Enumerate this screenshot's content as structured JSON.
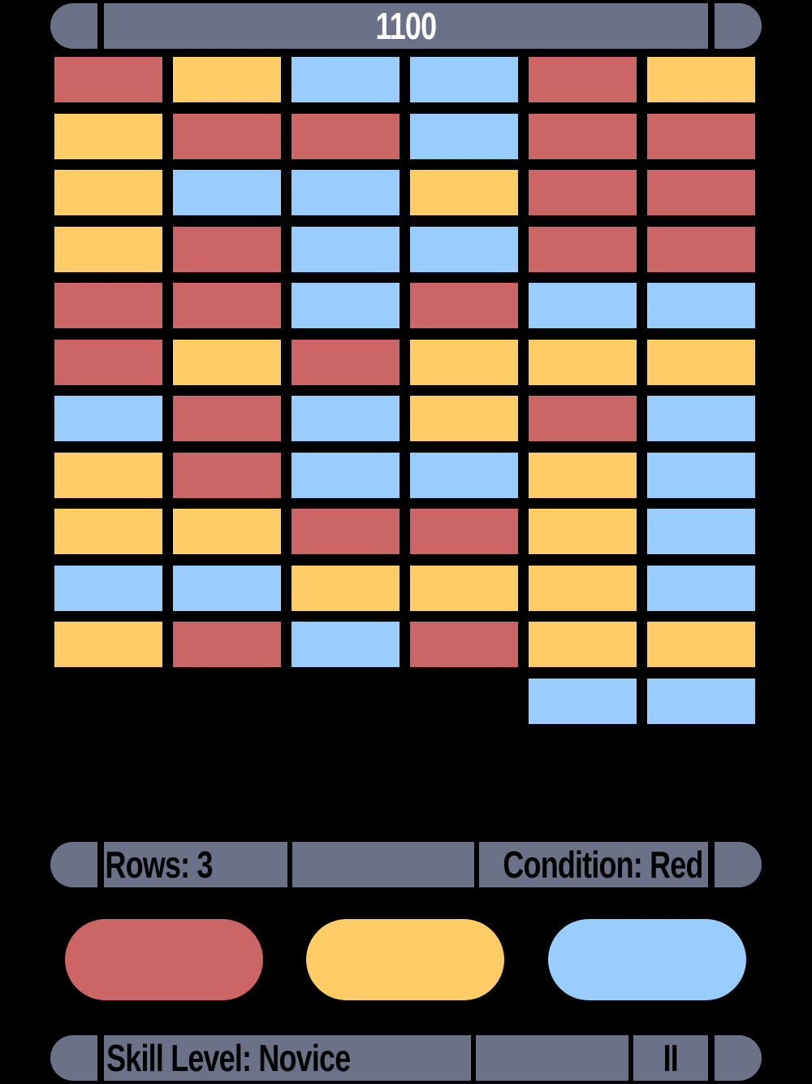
{
  "score": "1100",
  "palette": {
    "red": "#cc6666",
    "yellow": "#ffcc66",
    "blue": "#99ccff",
    "bar": "#6b7186"
  },
  "bricks": {
    "columns": 6,
    "rows": [
      [
        "red",
        "yellow",
        "blue",
        "blue",
        "red",
        "yellow"
      ],
      [
        "yellow",
        "red",
        "red",
        "blue",
        "red",
        "red"
      ],
      [
        "yellow",
        "blue",
        "blue",
        "yellow",
        "red",
        "red"
      ],
      [
        "yellow",
        "red",
        "blue",
        "blue",
        "red",
        "red"
      ],
      [
        "red",
        "red",
        "blue",
        "red",
        "blue",
        "blue"
      ],
      [
        "red",
        "yellow",
        "red",
        "yellow",
        "yellow",
        "yellow"
      ],
      [
        "blue",
        "red",
        "blue",
        "yellow",
        "red",
        "blue"
      ],
      [
        "yellow",
        "red",
        "blue",
        "blue",
        "yellow",
        "blue"
      ],
      [
        "yellow",
        "yellow",
        "red",
        "red",
        "yellow",
        "blue"
      ],
      [
        "blue",
        "blue",
        "yellow",
        "yellow",
        "yellow",
        "blue"
      ],
      [
        "yellow",
        "red",
        "blue",
        "red",
        "yellow",
        "yellow"
      ],
      [
        null,
        null,
        null,
        null,
        "blue",
        "blue"
      ]
    ]
  },
  "status": {
    "rows_label": "Rows: 3",
    "condition_label": "Condition: Red"
  },
  "color_buttons": [
    "red",
    "yellow",
    "blue"
  ],
  "footer": {
    "skill_label": "Skill Level: Novice",
    "pause_label": "II"
  }
}
